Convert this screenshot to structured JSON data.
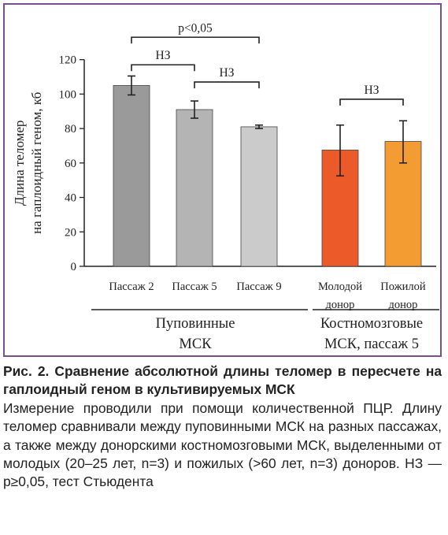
{
  "chart_data": {
    "type": "bar",
    "categories": [
      "Пассаж 2",
      "Пассаж 5",
      "Пассаж 9",
      "Молодой донор",
      "Пожилой донор"
    ],
    "category_lines": [
      [
        "Пассаж 2"
      ],
      [
        "Пассаж 5"
      ],
      [
        "Пассаж 9"
      ],
      [
        "Молодой",
        "донор"
      ],
      [
        "Пожилой",
        "донор"
      ]
    ],
    "values": [
      105,
      91,
      81,
      67.5,
      72.5
    ],
    "error_low": [
      99.5,
      86,
      80,
      52.5,
      60
    ],
    "error_high": [
      110.5,
      96,
      82,
      82,
      84.5
    ],
    "colors": [
      "#9a9a9a",
      "#b4b4b4",
      "#cbcbcb",
      "#ec5a29",
      "#f39c32"
    ],
    "ylabel_line1": "Длина теломер",
    "ylabel_line2": "на гаплоидный геном, кб",
    "ylim": [
      0,
      120
    ],
    "yticks": [
      0,
      20,
      40,
      60,
      80,
      100,
      120
    ],
    "grid": false,
    "groups": [
      {
        "lines": [
          "Пуповинные",
          "МСК"
        ],
        "members": [
          0,
          1,
          2
        ]
      },
      {
        "lines": [
          "Костномозговые",
          "МСК, пассаж 5"
        ],
        "members": [
          3,
          4
        ]
      }
    ],
    "annotations": [
      {
        "label": "p<0,05",
        "from": 0,
        "to": 2,
        "level": 133
      },
      {
        "label": "НЗ",
        "from": 0,
        "to": 1,
        "level": 117
      },
      {
        "label": "НЗ",
        "from": 1,
        "to": 2,
        "level": 107
      },
      {
        "label": "НЗ",
        "from": 3,
        "to": 4,
        "level": 97
      }
    ]
  },
  "caption": {
    "title": "Рис. 2. Сравнение абсолютной длины теломер в пересчете на гаплоидный геном в культивируемых МСК",
    "body": "Измерение проводили при помощи количественной ПЦР. Длину теломер сравнивали между пуповинными МСК на разных пассажах, а также между донорскими костномозговыми МСК, выделенными от молодых (20–25 лет, n=3) и пожилых (>60 лет, n=3) доноров. НЗ — p≥0,05, тест Стьюдента"
  }
}
